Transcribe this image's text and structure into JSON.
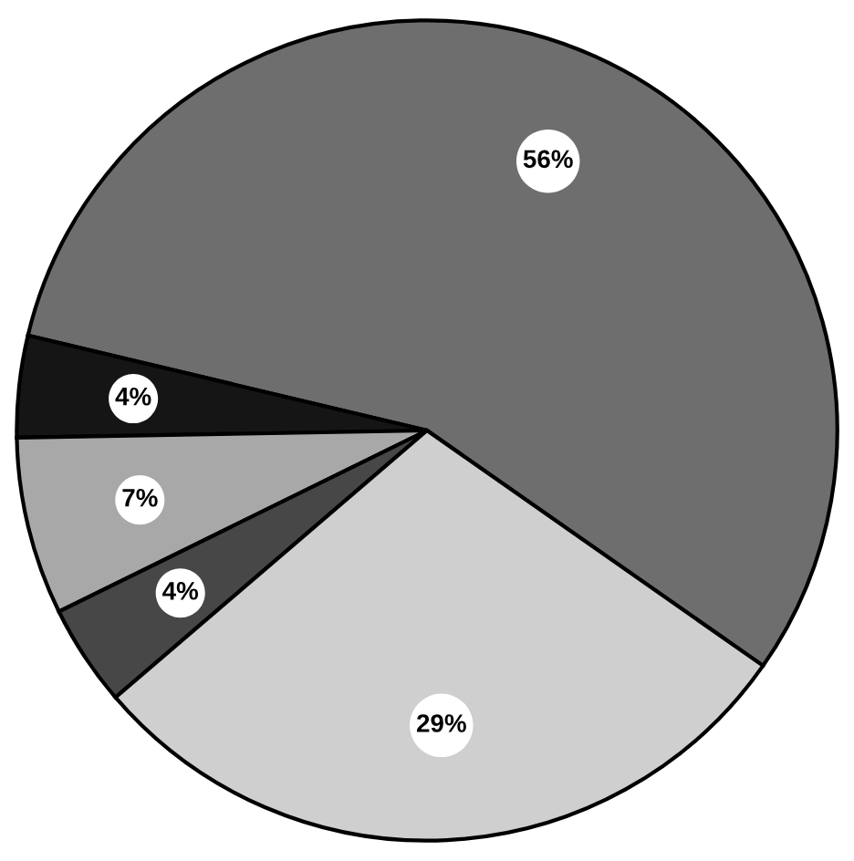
{
  "chart_data": {
    "type": "pie",
    "categories": [
      null,
      null,
      null,
      null,
      null
    ],
    "values": [
      56,
      4,
      7,
      4,
      29
    ],
    "value_labels": [
      "56%",
      "4%",
      "7%",
      "4%",
      "29%"
    ],
    "colors": [
      "#6e6e6e",
      "#151515",
      "#a8a8a8",
      "#474747",
      "#cfcfcf"
    ]
  }
}
